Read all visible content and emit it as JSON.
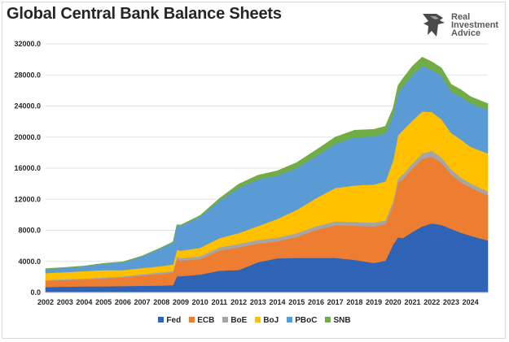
{
  "title": "Global Central Bank Balance Sheets",
  "logo": {
    "lines": [
      "Real",
      "Investment",
      "Advice"
    ]
  },
  "chart_data": {
    "type": "area",
    "stacked": true,
    "title": "Global Central Bank Balance Sheets",
    "xlabel": "",
    "ylabel": "",
    "ylim": [
      0,
      32000
    ],
    "yticks": [
      0,
      4000,
      8000,
      12000,
      16000,
      20000,
      24000,
      28000,
      32000
    ],
    "ytick_labels": [
      "0.0",
      "4000.0",
      "8000.0",
      "12000.0",
      "16000.0",
      "20000.0",
      "24000.0",
      "28000.0",
      "32000.0"
    ],
    "xlim": [
      2002,
      2024.9
    ],
    "xticks": [
      "2002",
      "2003",
      "2004",
      "2005",
      "2006",
      "2007",
      "2008",
      "2009",
      "2010",
      "2011",
      "2012",
      "2013",
      "2014",
      "2015",
      "2016",
      "2017",
      "2018",
      "2019",
      "2020",
      "2021",
      "2022",
      "2023",
      "2024"
    ],
    "grid": "horizontal",
    "legend_position": "bottom",
    "x": [
      2002.0,
      2003.0,
      2004.0,
      2005.0,
      2006.0,
      2007.0,
      2008.0,
      2008.6,
      2008.8,
      2009.0,
      2010.0,
      2011.0,
      2012.0,
      2013.0,
      2014.0,
      2015.0,
      2016.0,
      2017.0,
      2018.0,
      2019.0,
      2019.6,
      2020.0,
      2020.25,
      2020.5,
      2021.0,
      2021.5,
      2022.0,
      2022.5,
      2023.0,
      2023.5,
      2024.0,
      2024.9
    ],
    "series": [
      {
        "name": "Fed",
        "color": "#2E63B5",
        "values": [
          700,
          750,
          780,
          800,
          830,
          870,
          900,
          950,
          2100,
          2100,
          2300,
          2800,
          2900,
          3900,
          4400,
          4450,
          4450,
          4450,
          4200,
          3800,
          4100,
          6200,
          7100,
          7000,
          7800,
          8500,
          8900,
          8700,
          8200,
          7700,
          7300,
          6700
        ]
      },
      {
        "name": "ECB",
        "color": "#ED7D31",
        "values": [
          800,
          850,
          900,
          1000,
          1100,
          1300,
          1500,
          1600,
          2200,
          2000,
          2000,
          2600,
          2900,
          2400,
          2200,
          2700,
          3600,
          4200,
          4400,
          4700,
          4700,
          5100,
          7000,
          7600,
          8200,
          8700,
          8600,
          8000,
          7000,
          6500,
          6200,
          5800
        ]
      },
      {
        "name": "BoE",
        "color": "#A5A5A5",
        "values": [
          100,
          110,
          120,
          130,
          150,
          180,
          200,
          210,
          300,
          320,
          350,
          400,
          450,
          450,
          460,
          470,
          480,
          500,
          480,
          500,
          500,
          520,
          550,
          600,
          650,
          700,
          750,
          700,
          650,
          600,
          560,
          500
        ]
      },
      {
        "name": "BoJ",
        "color": "#FFC000",
        "values": [
          900,
          900,
          950,
          950,
          800,
          800,
          800,
          850,
          900,
          950,
          1100,
          1200,
          1400,
          1800,
          2400,
          3000,
          3600,
          4300,
          4700,
          4900,
          5000,
          5200,
          5600,
          5700,
          5500,
          5400,
          5000,
          4900,
          4700,
          4900,
          4700,
          4900
        ]
      },
      {
        "name": "PBoC",
        "color": "#5B9BD5",
        "values": [
          500,
          550,
          600,
          800,
          1000,
          1500,
          2300,
          2800,
          3100,
          3200,
          4000,
          4800,
          5800,
          6000,
          5600,
          5400,
          5400,
          5700,
          6200,
          6200,
          6200,
          5800,
          5400,
          5600,
          5900,
          5900,
          5400,
          5600,
          5300,
          5500,
          5600,
          5600
        ]
      },
      {
        "name": "SNB",
        "color": "#70AD47",
        "values": [
          60,
          60,
          60,
          60,
          60,
          60,
          80,
          100,
          120,
          120,
          150,
          300,
          500,
          550,
          600,
          700,
          800,
          850,
          900,
          900,
          900,
          950,
          1000,
          1050,
          1100,
          1100,
          1050,
          1000,
          950,
          900,
          850,
          800
        ]
      }
    ]
  }
}
